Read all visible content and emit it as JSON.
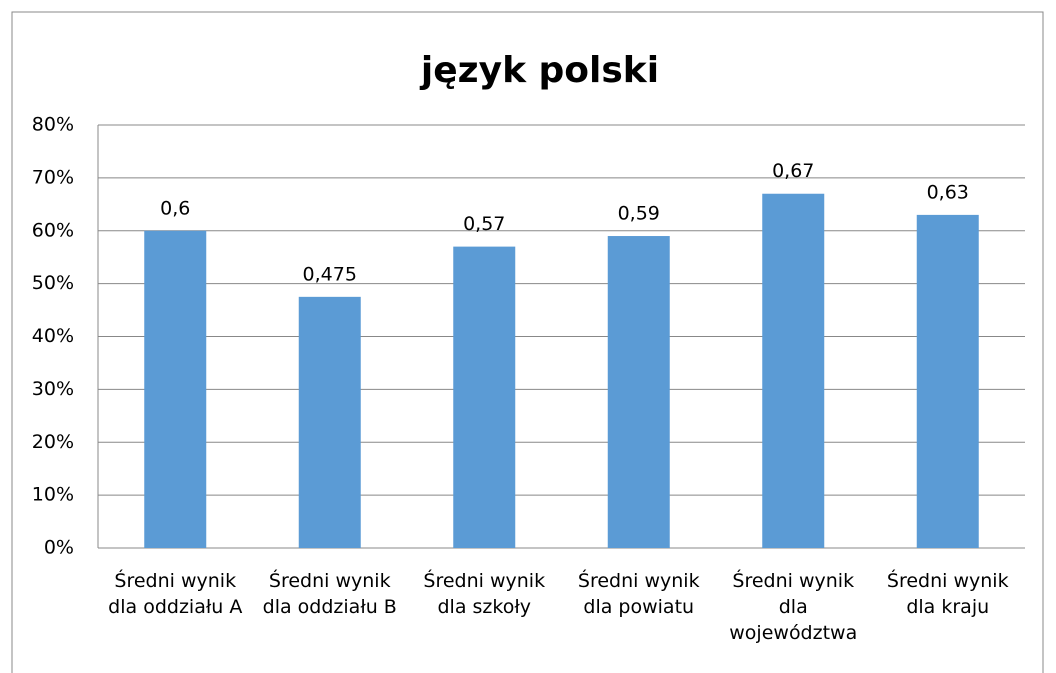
{
  "chart_data": {
    "type": "bar",
    "title": "język polski",
    "categories": [
      "Średni wynik dla oddziału A",
      "Średni wynik dla oddziału B",
      "Średni wynik dla szkoły",
      "Średni wynik dla powiatu",
      "Średni wynik dla województwa",
      "Średni wynik dla kraju"
    ],
    "values": [
      60,
      47.5,
      57,
      59,
      67,
      63
    ],
    "value_labels": [
      "0,6",
      "0,475",
      "0,57",
      "0,59",
      "0,67",
      "0,63"
    ],
    "color": "#5b9bd5",
    "ylim": [
      0,
      80
    ],
    "yticks": [
      {
        "value": 0,
        "label": "0%"
      },
      {
        "value": 10,
        "label": "10%"
      },
      {
        "value": 20,
        "label": "20%"
      },
      {
        "value": 30,
        "label": "30%"
      },
      {
        "value": 40,
        "label": "40%"
      },
      {
        "value": 50,
        "label": "50%"
      },
      {
        "value": 60,
        "label": "60%"
      },
      {
        "value": 70,
        "label": "70%"
      },
      {
        "value": 80,
        "label": "80%"
      }
    ],
    "grid": true
  }
}
